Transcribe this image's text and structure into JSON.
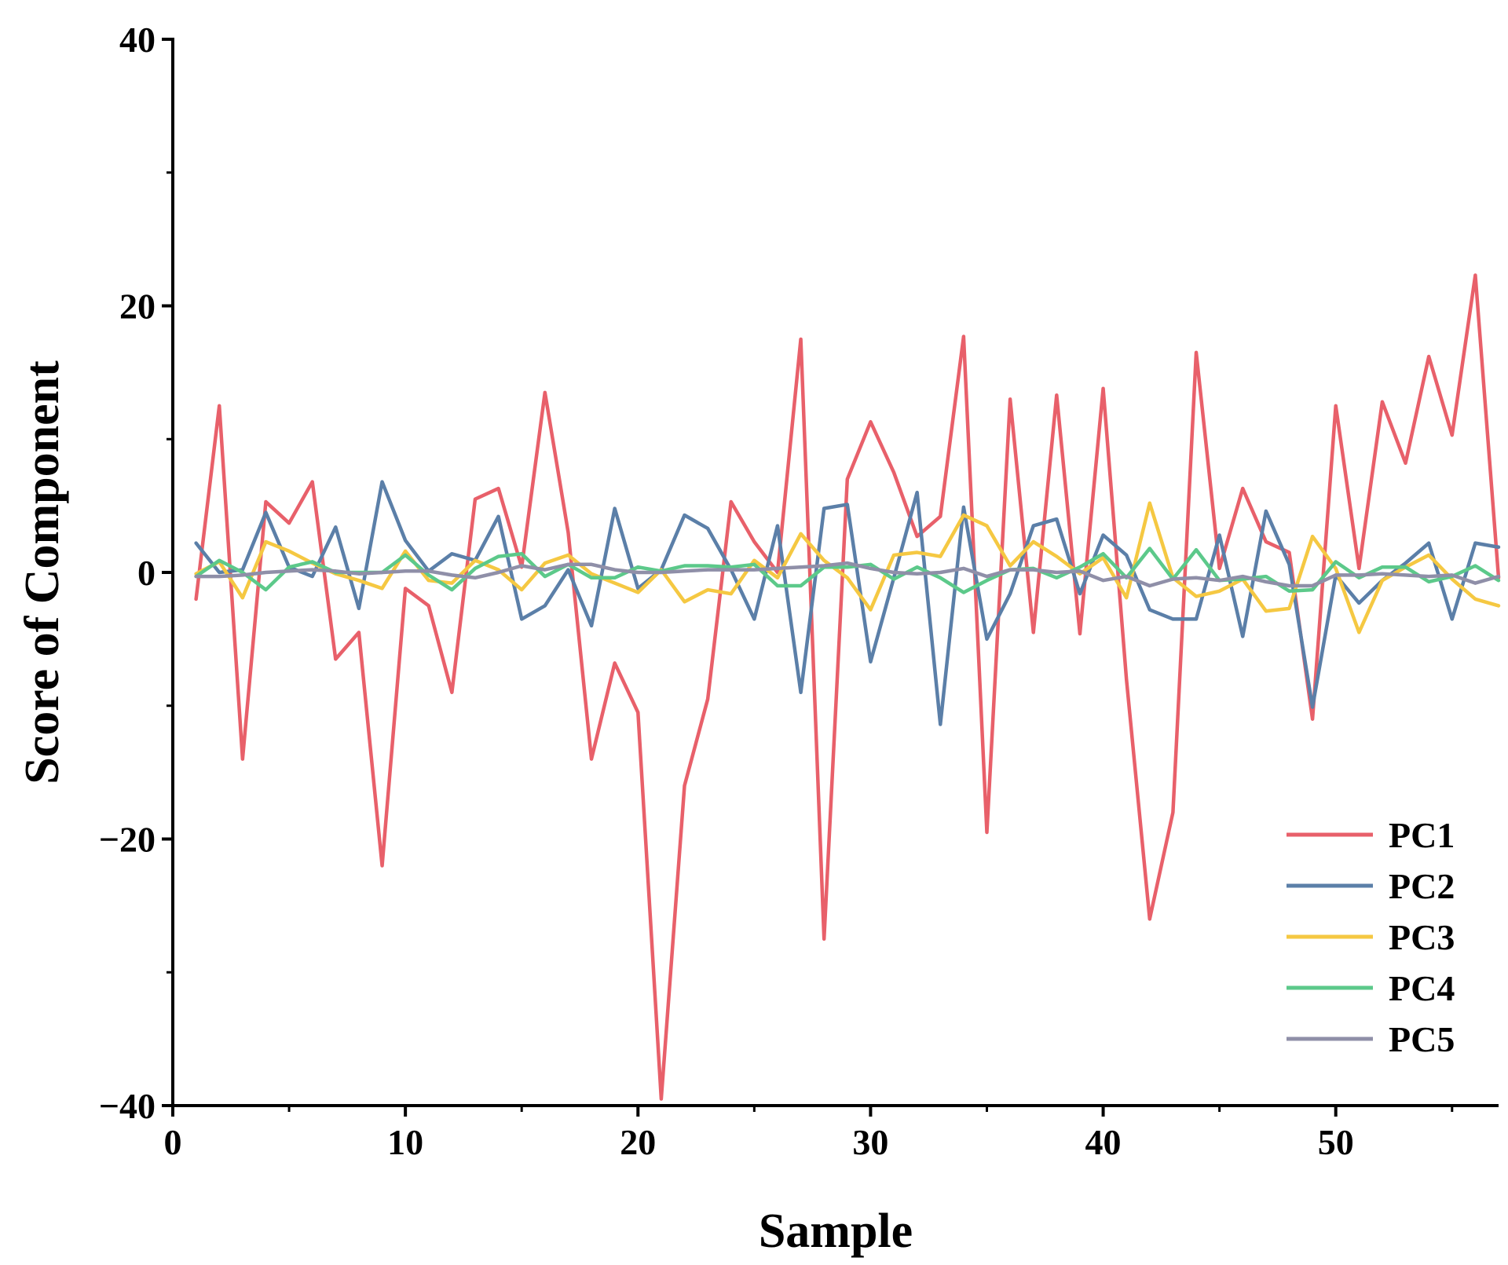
{
  "chart_data": {
    "type": "line",
    "title": "",
    "xlabel": "Sample",
    "ylabel": "Score of Component",
    "xlim": [
      0,
      57
    ],
    "ylim": [
      -40,
      40
    ],
    "xticks": [
      0,
      10,
      20,
      30,
      40,
      50
    ],
    "yticks": [
      -40,
      -20,
      0,
      20,
      40
    ],
    "ytick_labels": [
      "−40",
      "−20",
      "0",
      "20",
      "40"
    ],
    "grid": false,
    "legend_position": "bottom-right",
    "x": [
      1,
      2,
      3,
      4,
      5,
      6,
      7,
      8,
      9,
      10,
      11,
      12,
      13,
      14,
      15,
      16,
      17,
      18,
      19,
      20,
      21,
      22,
      23,
      24,
      25,
      26,
      27,
      28,
      29,
      30,
      31,
      32,
      33,
      34,
      35,
      36,
      37,
      38,
      39,
      40,
      41,
      42,
      43,
      44,
      45,
      46,
      47,
      48,
      49,
      50,
      51,
      52,
      53,
      54,
      55,
      56,
      57
    ],
    "series": [
      {
        "name": "PC1",
        "color": "#e8606a",
        "values": [
          -2,
          12.5,
          -14,
          5.3,
          3.7,
          6.8,
          -6.5,
          -4.5,
          -22,
          -1.2,
          -2.5,
          -9,
          5.5,
          6.3,
          0.4,
          13.5,
          3,
          -14,
          -6.8,
          -10.5,
          -39.5,
          -16,
          -9.5,
          5.3,
          2.3,
          0,
          17.5,
          -27.5,
          7,
          11.3,
          7.5,
          2.7,
          4.2,
          17.7,
          -19.5,
          13,
          -4.5,
          13.3,
          -4.6,
          13.8,
          -8,
          -26,
          -18,
          16.5,
          0.3,
          6.3,
          2.3,
          1.5,
          -11,
          12.5,
          0.3,
          12.8,
          8.2,
          16.2,
          10.3,
          22.3,
          -0.4
        ]
      },
      {
        "name": "PC2",
        "color": "#5b7fa8",
        "values": [
          2.2,
          0,
          0.2,
          4.5,
          0.4,
          -0.3,
          3.4,
          -2.7,
          6.8,
          2.4,
          0.1,
          1.4,
          0.9,
          4.2,
          -3.5,
          -2.5,
          0.2,
          -4,
          4.8,
          -1.2,
          0.2,
          4.3,
          3.3,
          0.2,
          -3.5,
          3.5,
          -9,
          4.8,
          5.1,
          -6.7,
          -0.4,
          6,
          -11.4,
          4.9,
          -5,
          -1.6,
          3.5,
          4,
          -1.6,
          2.8,
          1.3,
          -2.8,
          -3.5,
          -3.5,
          2.8,
          -4.8,
          4.6,
          0.6,
          -10.1,
          -0.2,
          -2.3,
          -0.6,
          0.7,
          2.2,
          -3.5,
          2.2,
          1.9
        ]
      },
      {
        "name": "PC3",
        "color": "#f5c842",
        "values": [
          -0.1,
          0.8,
          -1.9,
          2.3,
          1.6,
          0.7,
          -0.1,
          -0.6,
          -1.2,
          1.6,
          -0.6,
          -0.8,
          0.9,
          0.2,
          -1.3,
          0.7,
          1.3,
          -0.1,
          -0.8,
          -1.5,
          0.2,
          -2.2,
          -1.3,
          -1.6,
          0.9,
          -0.4,
          2.9,
          0.9,
          -0.4,
          -2.8,
          1.3,
          1.5,
          1.2,
          4.3,
          3.5,
          0.5,
          2.3,
          1.2,
          -0.1,
          1.1,
          -1.9,
          5.2,
          -0.4,
          -1.8,
          -1.4,
          -0.5,
          -2.9,
          -2.7,
          2.7,
          0.3,
          -4.5,
          -0.6,
          0.4,
          1.3,
          -0.5,
          -2,
          -2.5
        ]
      },
      {
        "name": "PC4",
        "color": "#5cc98a",
        "values": [
          -0.3,
          0.9,
          0,
          -1.3,
          0.4,
          0.8,
          0,
          0,
          0,
          1.3,
          -0.2,
          -1.3,
          0.3,
          1.2,
          1.4,
          -0.3,
          0.6,
          -0.4,
          -0.4,
          0.4,
          0.1,
          0.5,
          0.5,
          0.4,
          0.6,
          -1,
          -1,
          0.4,
          0.4,
          0.6,
          -0.5,
          0.4,
          -0.4,
          -1.5,
          -0.6,
          0.2,
          0.3,
          -0.4,
          0.4,
          1.4,
          -0.4,
          1.8,
          -0.5,
          1.7,
          -0.6,
          -0.5,
          -0.3,
          -1.4,
          -1.3,
          0.8,
          -0.4,
          0.4,
          0.4,
          -0.7,
          -0.3,
          0.5,
          -0.6
        ]
      },
      {
        "name": "PC5",
        "color": "#8f8fa8",
        "values": [
          -0.3,
          -0.3,
          -0.2,
          0,
          0.1,
          0.2,
          0.1,
          -0.1,
          0,
          0.1,
          0.1,
          -0.2,
          -0.4,
          0,
          0.5,
          0.2,
          0.6,
          0.6,
          0.2,
          0,
          0,
          0.1,
          0.2,
          0.2,
          0.2,
          0.3,
          0.4,
          0.5,
          0.7,
          0.3,
          0,
          -0.1,
          0,
          0.3,
          -0.3,
          0.2,
          0.2,
          0,
          0.1,
          -0.6,
          -0.3,
          -1,
          -0.5,
          -0.4,
          -0.6,
          -0.3,
          -0.7,
          -1,
          -1,
          -0.2,
          -0.2,
          -0.1,
          -0.2,
          -0.3,
          -0.2,
          -0.8,
          -0.3
        ]
      }
    ]
  }
}
